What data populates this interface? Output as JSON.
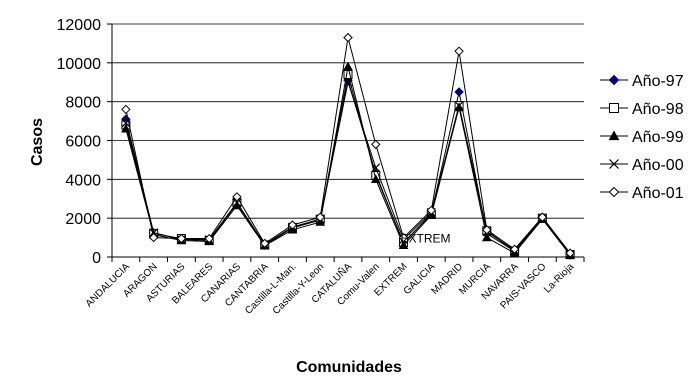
{
  "chart_data": {
    "type": "line",
    "xlabel": "Comunidades",
    "ylabel": "Casos",
    "ylim": [
      0,
      12000
    ],
    "yticks": [
      0,
      2000,
      4000,
      6000,
      8000,
      10000,
      12000
    ],
    "grid": "horizontal",
    "legend_position": "right",
    "categories": [
      "ANDALUCIA",
      "ARAGON",
      "ASTURIAS",
      "BALEARES",
      "CANARIAS",
      "CANTABRIA",
      "Castilla-L-Man.",
      "Castilla-Y-Leon",
      "CATALUÑA",
      "Comu-Valen",
      "EXTREM",
      "GALICIA",
      "MADRID",
      "MURCIA",
      "NAVARRA",
      "PAIS-VASCO",
      "La-Rioja"
    ],
    "series": [
      {
        "name": "Año-97",
        "marker": "diamond-filled",
        "color": "#000080",
        "values": [
          7100,
          1250,
          900,
          850,
          2750,
          600,
          1500,
          1900,
          9100,
          4300,
          700,
          2250,
          8500,
          1200,
          300,
          2050,
          100
        ]
      },
      {
        "name": "Año-98",
        "marker": "square-open",
        "color": "#000000",
        "values": [
          6800,
          1200,
          950,
          850,
          2800,
          620,
          1500,
          1950,
          9400,
          4200,
          750,
          2200,
          7800,
          1350,
          300,
          2000,
          120
        ]
      },
      {
        "name": "Año-99",
        "marker": "triangle-filled",
        "color": "#000000",
        "values": [
          6600,
          1150,
          850,
          800,
          2650,
          580,
          1400,
          1800,
          9800,
          4000,
          600,
          2150,
          7700,
          1000,
          200,
          1950,
          100
        ]
      },
      {
        "name": "Año-00",
        "marker": "x",
        "color": "#000000",
        "values": [
          6900,
          1250,
          900,
          900,
          2800,
          650,
          1550,
          1950,
          9000,
          4600,
          900,
          2300,
          7800,
          1300,
          350,
          2000,
          150
        ]
      },
      {
        "name": "Año-01",
        "marker": "diamond-open",
        "color": "#000000",
        "values": [
          7600,
          1000,
          950,
          950,
          3100,
          700,
          1650,
          2050,
          11300,
          5800,
          1000,
          2400,
          10600,
          1400,
          400,
          2050,
          200
        ]
      }
    ],
    "annotations": [
      {
        "text": "EXTREM",
        "category": "EXTREM",
        "value": 600
      }
    ]
  }
}
